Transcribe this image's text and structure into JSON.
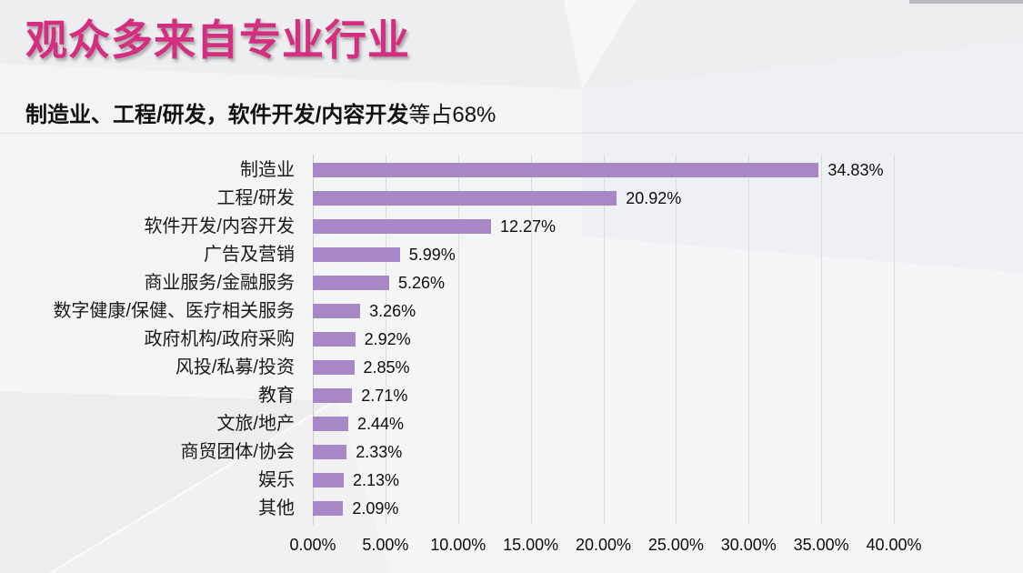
{
  "page": {
    "title": "观众多来自专业行业",
    "subtitle_bold": "制造业、工程/研发，软件开发/内容开发",
    "subtitle_rest": "等占68%"
  },
  "colors": {
    "title_pink": "#d42e80",
    "bar_purple": "#a787c5",
    "gridline": "#dbdce2",
    "background": "#f1f1f4",
    "top_strip": "#b9babe",
    "text": "#1a1a1a"
  },
  "chart_data": {
    "type": "bar",
    "orientation": "horizontal",
    "title": "",
    "xlabel": "",
    "ylabel": "",
    "xlim": [
      0,
      40
    ],
    "grid": true,
    "legend": false,
    "categories": [
      "制造业",
      "工程/研发",
      "软件开发/内容开发",
      "广告及营销",
      "商业服务/金融服务",
      "数字健康/保健、医疗相关服务",
      "政府机构/政府采购",
      "风投/私募/投资",
      "教育",
      "文旅/地产",
      "商贸团体/协会",
      "娱乐",
      "其他"
    ],
    "values": [
      34.83,
      20.92,
      12.27,
      5.99,
      5.26,
      3.26,
      2.92,
      2.85,
      2.71,
      2.44,
      2.33,
      2.13,
      2.09
    ],
    "value_labels": [
      "34.83%",
      "20.92%",
      "12.27%",
      "5.99%",
      "5.26%",
      "3.26%",
      "2.92%",
      "2.85%",
      "2.71%",
      "2.44%",
      "2.33%",
      "2.13%",
      "2.09%"
    ],
    "x_ticks": [
      "0.00%",
      "5.00%",
      "10.00%",
      "15.00%",
      "20.00%",
      "25.00%",
      "30.00%",
      "35.00%",
      "40.00%"
    ]
  }
}
